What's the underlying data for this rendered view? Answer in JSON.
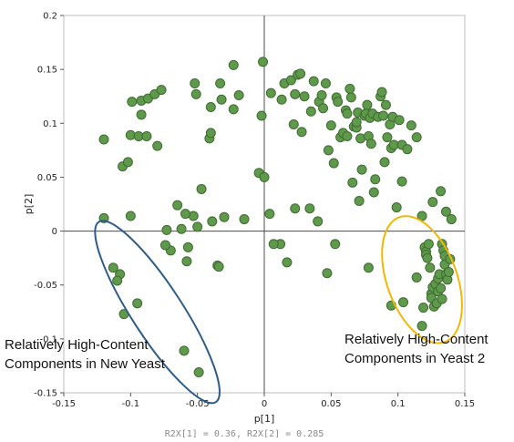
{
  "chart_data": {
    "type": "scatter",
    "xlabel": "p[1]",
    "ylabel": "p[2]",
    "xlim": [
      -0.15,
      0.15
    ],
    "ylim": [
      -0.15,
      0.2
    ],
    "x_ticks": [
      "-0.15",
      "-0.1",
      "-0.05",
      "0",
      "0.05",
      "0.1",
      "0.15"
    ],
    "y_ticks": [
      "-0.15",
      "-0.1",
      "-0.05",
      "0",
      "0.05",
      "0.1",
      "0.15",
      "0.2"
    ],
    "x_tick_values": [
      -0.15,
      -0.1,
      -0.05,
      0,
      0.05,
      0.1,
      0.15
    ],
    "y_tick_values": [
      -0.15,
      -0.1,
      -0.05,
      0,
      0.05,
      0.1,
      0.15,
      0.2
    ],
    "grid": false,
    "marker_color": "#5f9a4c",
    "marker_edge": "#3f6b31",
    "footer": "R2X[1] = 0.36, R2X[2] = 0.285",
    "points": [
      [
        -0.12,
        0.085
      ],
      [
        -0.12,
        0.012
      ],
      [
        -0.106,
        0.06
      ],
      [
        -0.102,
        0.064
      ],
      [
        -0.1,
        0.089
      ],
      [
        -0.1,
        0.014
      ],
      [
        -0.099,
        0.12
      ],
      [
        -0.094,
        0.088
      ],
      [
        -0.092,
        0.108
      ],
      [
        -0.092,
        0.121
      ],
      [
        -0.088,
        0.088
      ],
      [
        -0.087,
        0.123
      ],
      [
        -0.082,
        0.127
      ],
      [
        -0.08,
        0.079
      ],
      [
        -0.077,
        0.131
      ],
      [
        -0.073,
        0.001
      ],
      [
        -0.065,
        0.024
      ],
      [
        -0.062,
        0.002
      ],
      [
        -0.053,
        0.014
      ],
      [
        -0.052,
        0.137
      ],
      [
        -0.051,
        0.127
      ],
      [
        -0.05,
        0.004
      ],
      [
        -0.041,
        0.086
      ],
      [
        -0.04,
        0.091
      ],
      [
        -0.04,
        0.115
      ],
      [
        -0.039,
        0.009
      ],
      [
        -0.033,
        0.137
      ],
      [
        -0.032,
        0.122
      ],
      [
        -0.03,
        0.013
      ],
      [
        -0.023,
        0.154
      ],
      [
        -0.023,
        0.113
      ],
      [
        -0.019,
        0.126
      ],
      [
        -0.015,
        0.011
      ],
      [
        -0.002,
        0.107
      ],
      [
        -0.001,
        0.157
      ],
      [
        -0.004,
        0.054
      ],
      [
        0,
        0.05
      ],
      [
        0.004,
        0.016
      ],
      [
        0.005,
        0.128
      ],
      [
        0.013,
        0.122
      ],
      [
        0.015,
        0.137
      ],
      [
        0.02,
        0.14
      ],
      [
        0.022,
        0.099
      ],
      [
        0.023,
        0.127
      ],
      [
        0.025,
        0.145
      ],
      [
        0.027,
        0.146
      ],
      [
        0.028,
        0.092
      ],
      [
        0.03,
        0.125
      ],
      [
        0.023,
        0.021
      ],
      [
        0.034,
        0.021
      ],
      [
        0.035,
        0.111
      ],
      [
        0.037,
        0.139
      ],
      [
        0.04,
        0.009
      ],
      [
        0.041,
        0.12
      ],
      [
        0.043,
        0.126
      ],
      [
        0.044,
        0.114
      ],
      [
        0.046,
        0.137
      ],
      [
        0.048,
        0.075
      ],
      [
        0.05,
        0.098
      ],
      [
        0.052,
        0.063
      ],
      [
        0.054,
        0.124
      ],
      [
        0.055,
        0.12
      ],
      [
        0.057,
        0.087
      ],
      [
        0.059,
        0.091
      ],
      [
        0.061,
        0.112
      ],
      [
        0.062,
        0.109
      ],
      [
        0.062,
        0.088
      ],
      [
        0.064,
        0.132
      ],
      [
        0.065,
        0.124
      ],
      [
        0.066,
        0.045
      ],
      [
        0.067,
        0.097
      ],
      [
        0.069,
        0.096
      ],
      [
        0.069,
        0.101
      ],
      [
        0.07,
        0.11
      ],
      [
        0.071,
        0.028
      ],
      [
        0.072,
        0.086
      ],
      [
        0.073,
        0.057
      ],
      [
        0.075,
        0.107
      ],
      [
        0.076,
        0.109
      ],
      [
        0.077,
        0.117
      ],
      [
        0.078,
        0.088
      ],
      [
        0.079,
        0.105
      ],
      [
        0.08,
        0.081
      ],
      [
        0.081,
        0.109
      ],
      [
        0.082,
        0.036
      ],
      [
        0.083,
        0.048
      ],
      [
        0.085,
        0.106
      ],
      [
        0.087,
        0.125
      ],
      [
        0.088,
        0.129
      ],
      [
        0.089,
        0.107
      ],
      [
        0.09,
        0.064
      ],
      [
        0.091,
        0.117
      ],
      [
        0.092,
        0.087
      ],
      [
        0.094,
        0.099
      ],
      [
        0.095,
        0.077
      ],
      [
        0.096,
        0.106
      ],
      [
        0.097,
        0.08
      ],
      [
        0.099,
        0.022
      ],
      [
        0.101,
        0.103
      ],
      [
        0.103,
        0.08
      ],
      [
        0.103,
        0.046
      ],
      [
        0.107,
        0.076
      ],
      [
        0.11,
        0.098
      ],
      [
        0.114,
        0.087
      ],
      [
        0.118,
        0.014
      ],
      [
        0.126,
        0.027
      ],
      [
        0.132,
        0.037
      ],
      [
        0.136,
        0.018
      ],
      [
        0.14,
        0.011
      ],
      [
        -0.047,
        0.039
      ],
      [
        -0.059,
        0.016
      ],
      [
        -0.07,
        -0.018
      ],
      [
        -0.074,
        -0.013
      ],
      [
        -0.057,
        -0.015
      ],
      [
        -0.058,
        -0.028
      ],
      [
        -0.035,
        -0.032
      ],
      [
        -0.034,
        -0.033
      ],
      [
        0.017,
        -0.029
      ],
      [
        0.047,
        -0.039
      ],
      [
        0.053,
        -0.012
      ],
      [
        0.078,
        -0.034
      ],
      [
        0.012,
        -0.012
      ],
      [
        0.007,
        -0.012
      ],
      [
        -0.113,
        -0.034
      ],
      [
        -0.108,
        -0.04
      ],
      [
        -0.11,
        -0.046
      ],
      [
        -0.105,
        -0.077
      ],
      [
        -0.095,
        -0.067
      ],
      [
        -0.06,
        -0.111
      ],
      [
        -0.049,
        -0.131
      ],
      [
        0.095,
        -0.069
      ],
      [
        0.104,
        -0.066
      ],
      [
        0.114,
        -0.043
      ],
      [
        0.119,
        -0.071
      ],
      [
        0.118,
        -0.088
      ],
      [
        0.12,
        -0.015
      ],
      [
        0.121,
        -0.019
      ],
      [
        0.121,
        -0.022
      ],
      [
        0.122,
        -0.025
      ],
      [
        0.123,
        -0.012
      ],
      [
        0.124,
        -0.034
      ],
      [
        0.125,
        -0.058
      ],
      [
        0.125,
        -0.062
      ],
      [
        0.126,
        -0.052
      ],
      [
        0.127,
        -0.07
      ],
      [
        0.128,
        -0.049
      ],
      [
        0.129,
        -0.067
      ],
      [
        0.13,
        -0.044
      ],
      [
        0.13,
        -0.056
      ],
      [
        0.131,
        -0.04
      ],
      [
        0.132,
        -0.053
      ],
      [
        0.133,
        -0.063
      ],
      [
        0.133,
        -0.012
      ],
      [
        0.134,
        -0.018
      ],
      [
        0.135,
        -0.023
      ],
      [
        0.135,
        -0.031
      ],
      [
        0.136,
        -0.04
      ],
      [
        0.137,
        -0.045
      ],
      [
        0.138,
        -0.038
      ],
      [
        0.139,
        -0.026
      ]
    ],
    "regions": [
      {
        "name": "Relatively High-Content Components in New Yeast",
        "label_lines": [
          "Relatively High-Content",
          "Components in New Yeast"
        ],
        "color": "#2e5c8a",
        "center": [
          -0.08,
          -0.075
        ],
        "semi_major": 0.089,
        "semi_minor": 0.021,
        "angle_deg": 57
      },
      {
        "name": "Relatively High-Content Components in Yeast 2",
        "label_lines": [
          "Relatively High-Content",
          "Components in Yeast 2"
        ],
        "color": "#f2b705",
        "center": [
          0.118,
          -0.045
        ],
        "semi_major": 0.055,
        "semi_minor": 0.029,
        "angle_deg": 70
      }
    ]
  }
}
